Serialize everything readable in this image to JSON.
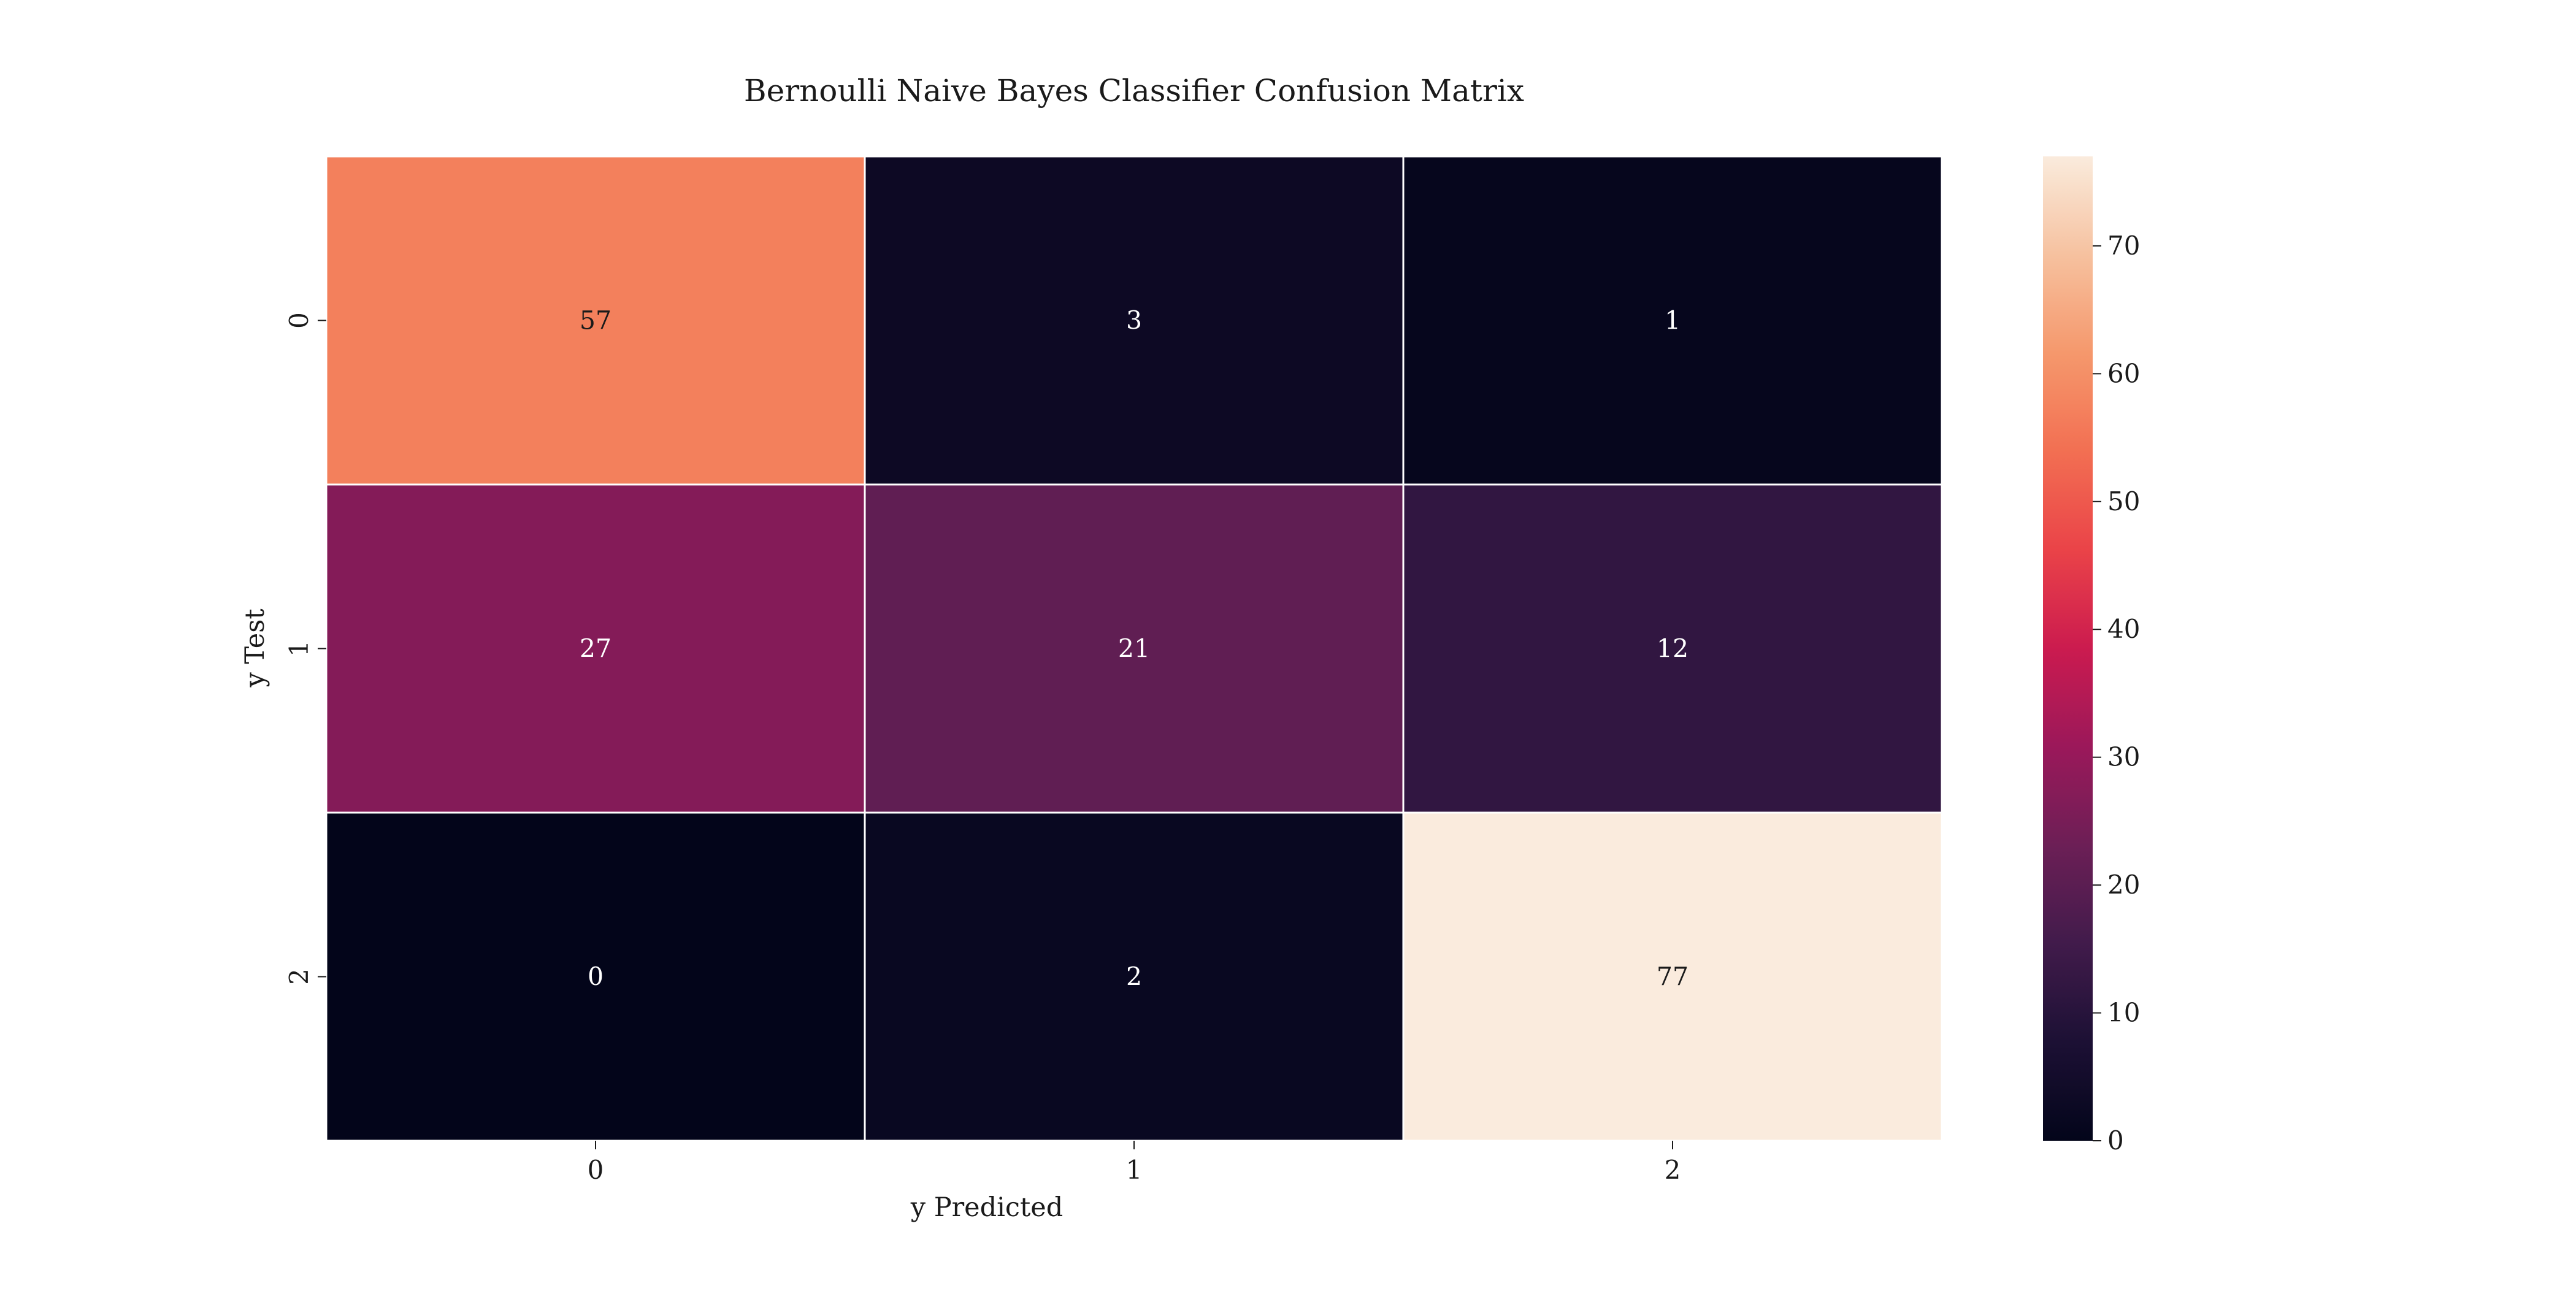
{
  "chart_data": {
    "type": "heatmap",
    "title": "Bernoulli Naive Bayes Classifier Confusion Matrix",
    "xlabel": "y Predicted",
    "ylabel": "y Test",
    "x_categories": [
      "0",
      "1",
      "2"
    ],
    "y_categories": [
      "0",
      "1",
      "2"
    ],
    "values": [
      [
        57,
        3,
        1
      ],
      [
        27,
        21,
        12
      ],
      [
        0,
        2,
        77
      ]
    ],
    "colorbar": {
      "range": [
        0,
        77
      ],
      "ticks": [
        0,
        10,
        20,
        30,
        40,
        50,
        60,
        70
      ]
    },
    "colormap": "rocket",
    "annotations": true
  }
}
